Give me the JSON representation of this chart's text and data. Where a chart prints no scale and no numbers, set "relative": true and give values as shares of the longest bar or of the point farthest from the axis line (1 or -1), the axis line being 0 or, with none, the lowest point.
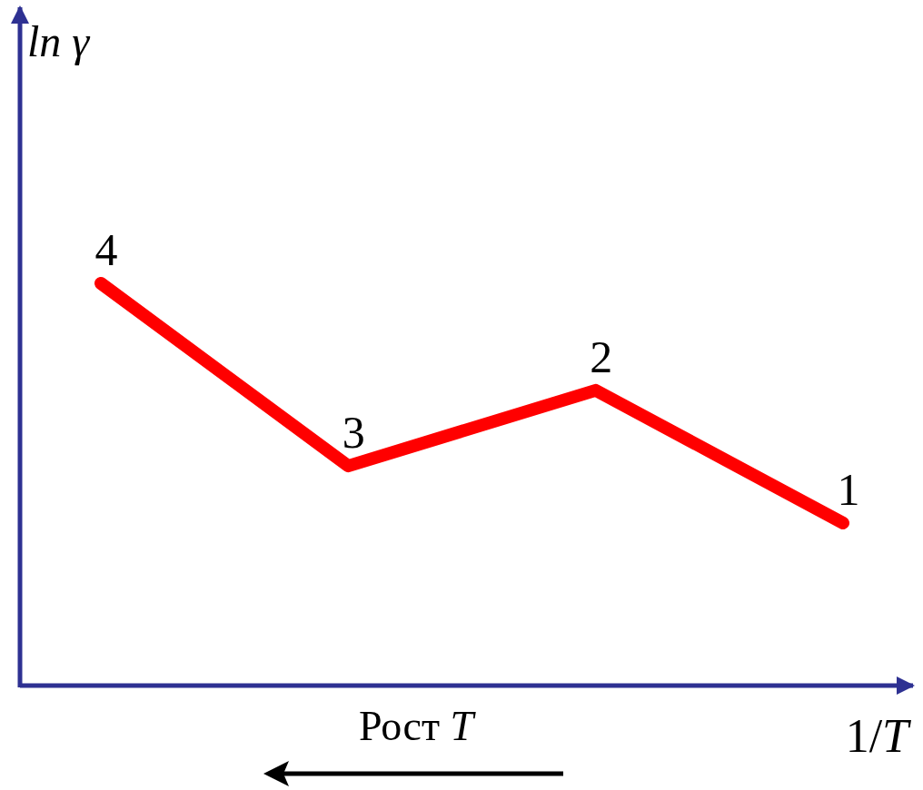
{
  "chart_data": {
    "type": "line",
    "relative": true,
    "xlabel": "1/T",
    "ylabel": "ln γ",
    "categories": [
      null,
      null,
      null,
      null
    ],
    "series": [
      {
        "color": "#ff0000",
        "values": [
          1,
          0.546,
          0.734,
          0.404
        ]
      }
    ],
    "annotations": [
      "4",
      "3",
      "2",
      "1",
      "Рост T"
    ],
    "marker": "none",
    "line_style": "solid"
  }
}
